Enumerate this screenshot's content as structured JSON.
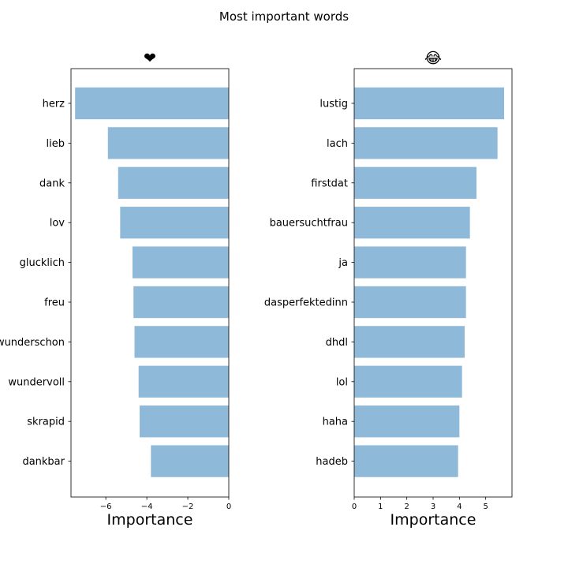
{
  "figure": {
    "title": "Most important words"
  },
  "colors": {
    "bar": "#8fb9d9",
    "axis": "#000000"
  },
  "chart_data": [
    {
      "type": "bar",
      "orientation": "horizontal",
      "title": "❤",
      "xlabel": "Importance",
      "ylabel": "",
      "categories": [
        "herz",
        "lieb",
        "dank",
        "lov",
        "glucklich",
        "freu",
        "wunderschon",
        "wundervoll",
        "skrapid",
        "dankbar"
      ],
      "values": [
        -7.5,
        -5.9,
        -5.4,
        -5.3,
        -4.7,
        -4.65,
        -4.6,
        -4.4,
        -4.35,
        -3.8
      ],
      "xlim": [
        -7.7,
        0
      ],
      "xticks": [
        -6,
        -4,
        -2,
        0
      ],
      "xtick_labels": [
        "−6",
        "−4",
        "−2",
        "0"
      ],
      "grid": false
    },
    {
      "type": "bar",
      "orientation": "horizontal",
      "title": "😂",
      "xlabel": "Importance",
      "ylabel": "",
      "categories": [
        "lustig",
        "lach",
        "firstdat",
        "bauersuchtfrau",
        "ja",
        "dasperfektedinn",
        "dhdl",
        "lol",
        "haha",
        "hadeb"
      ],
      "values": [
        5.7,
        5.45,
        4.65,
        4.4,
        4.25,
        4.25,
        4.2,
        4.1,
        4.0,
        3.95
      ],
      "xlim": [
        0,
        6
      ],
      "xticks": [
        0,
        1,
        2,
        3,
        4,
        5
      ],
      "xtick_labels": [
        "0",
        "1",
        "2",
        "3",
        "4",
        "5"
      ],
      "grid": false
    }
  ]
}
